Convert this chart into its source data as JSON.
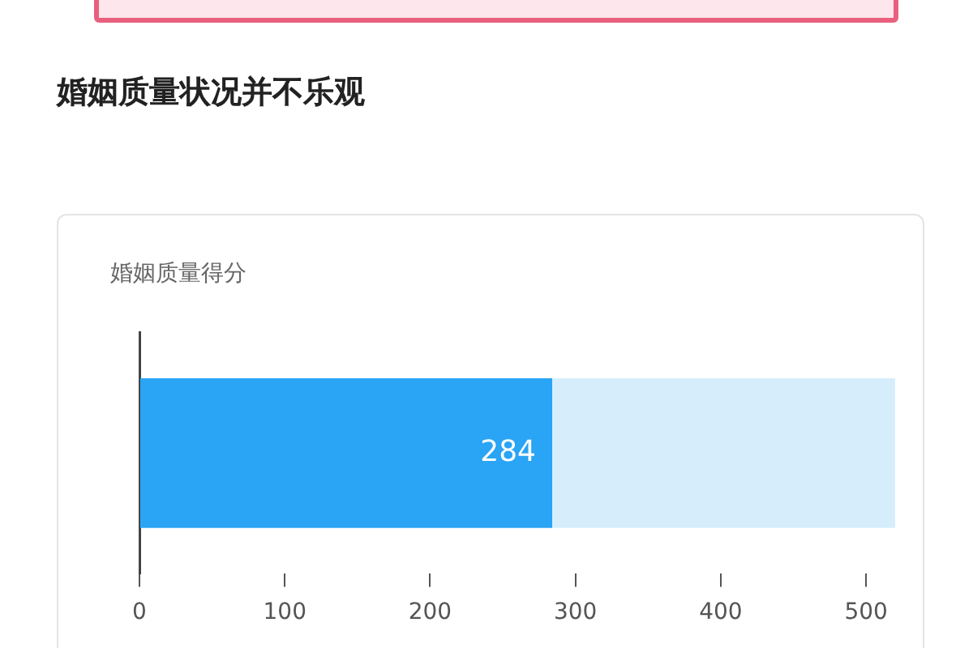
{
  "chart_data": {
    "type": "bar",
    "title": "婚姻质量状况并不乐观",
    "subtitle": "婚姻质量得分",
    "orientation": "horizontal",
    "stacked": true,
    "categories": [
      null
    ],
    "series": [
      {
        "color": "#2aa4f4",
        "values": [
          284
        ],
        "value_labels": [
          "284"
        ]
      },
      {
        "color": "#d6eefc",
        "values": [
          236
        ]
      }
    ],
    "xlim": [
      0,
      520
    ],
    "xticks": [
      0,
      100,
      200,
      300,
      400,
      500
    ]
  }
}
